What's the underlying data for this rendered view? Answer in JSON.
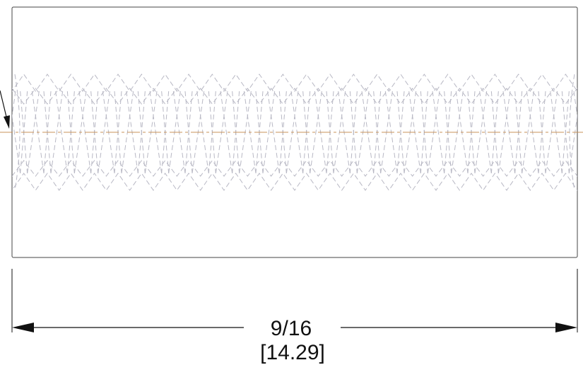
{
  "drawing": {
    "dimension": {
      "fraction_label": "9/16",
      "metric_label": "[14.29]"
    },
    "thread": {
      "turns": 24
    }
  },
  "colors": {
    "outline": "#444444",
    "hidden_lines": "#b8b8c4",
    "centerline": "#c9935a",
    "dimension": "#111111"
  }
}
